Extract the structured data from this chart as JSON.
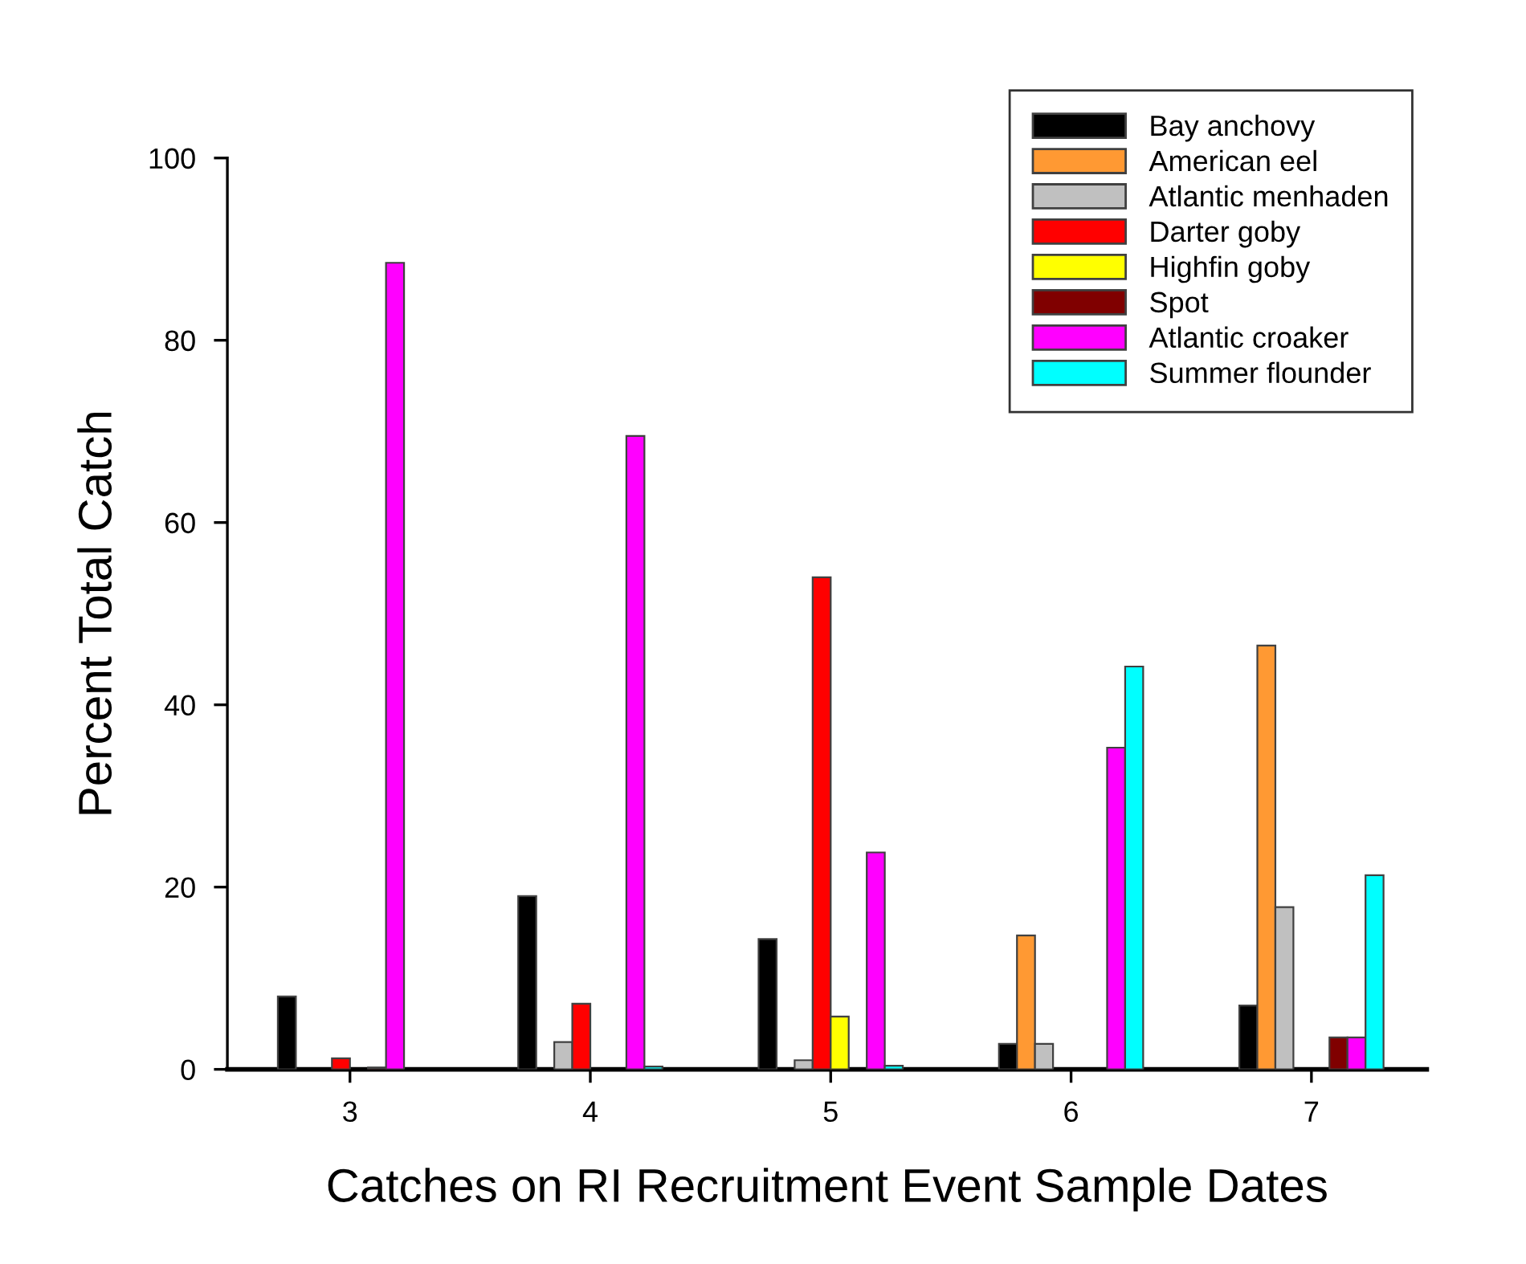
{
  "chart_data": {
    "type": "bar",
    "xlabel": "Catches on RI Recruitment Event Sample Dates",
    "ylabel": "Percent Total Catch",
    "categories": [
      "3",
      "4",
      "5",
      "6",
      "7"
    ],
    "series": [
      {
        "name": "Bay anchovy",
        "color": "#000000",
        "values": [
          8,
          19,
          14.3,
          2.8,
          7
        ]
      },
      {
        "name": "American eel",
        "color": "#ff9933",
        "values": [
          null,
          null,
          null,
          14.7,
          46.5
        ]
      },
      {
        "name": "Atlantic menhaden",
        "color": "#c0c0c0",
        "values": [
          null,
          3,
          1,
          2.8,
          17.8
        ]
      },
      {
        "name": "Darter goby",
        "color": "#ff0000",
        "values": [
          1.2,
          7.2,
          54,
          null,
          null
        ]
      },
      {
        "name": "Highfin goby",
        "color": "#ffff00",
        "values": [
          null,
          null,
          5.8,
          null,
          null
        ]
      },
      {
        "name": "Spot",
        "color": "#800000",
        "values": [
          0.2,
          null,
          null,
          null,
          3.5
        ]
      },
      {
        "name": "Atlantic croaker",
        "color": "#ff00ff",
        "values": [
          88.5,
          69.5,
          23.8,
          35.3,
          3.5
        ]
      },
      {
        "name": "Summer flounder",
        "color": "#00ffff",
        "values": [
          null,
          0.3,
          0.4,
          44.2,
          21.3
        ]
      }
    ],
    "ylim": [
      0,
      100
    ],
    "yticks": [
      0,
      20,
      40,
      60,
      80,
      100
    ],
    "grid": false,
    "legend": "top right"
  }
}
